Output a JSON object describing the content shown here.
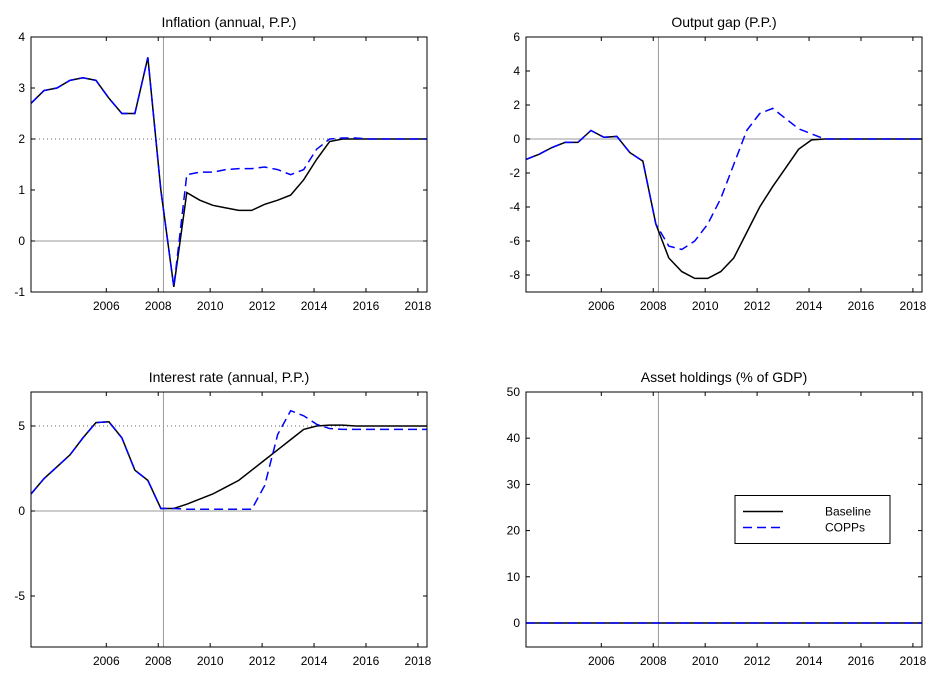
{
  "chart_data": [
    {
      "type": "line",
      "title": "Inflation (annual, P.P.)",
      "x": [
        2003.1,
        2003.6,
        2004.1,
        2004.6,
        2005.1,
        2005.6,
        2006.1,
        2006.6,
        2007.1,
        2007.6,
        2008.1,
        2008.6,
        2009.1,
        2009.6,
        2010.1,
        2010.6,
        2011.1,
        2011.6,
        2012.1,
        2012.6,
        2013.1,
        2013.6,
        2014.1,
        2014.6,
        2015.1,
        2015.6,
        2016.1,
        2016.6,
        2017.1,
        2017.6,
        2018.1,
        2018.35
      ],
      "series": [
        {
          "color": "#000000",
          "dash": "solid",
          "values": [
            2.7,
            2.95,
            3.0,
            3.15,
            3.2,
            3.15,
            2.8,
            2.5,
            2.5,
            3.6,
            1.0,
            -0.9,
            0.95,
            0.8,
            0.7,
            0.65,
            0.6,
            0.6,
            0.72,
            0.8,
            0.9,
            1.2,
            1.6,
            1.95,
            2.0,
            2.0,
            2.0,
            2.0,
            2.0,
            2.0,
            2.0,
            2.0
          ]
        },
        {
          "color": "#0000ff",
          "dash": "dashed",
          "values": [
            2.7,
            2.95,
            3.0,
            3.15,
            3.2,
            3.15,
            2.8,
            2.5,
            2.5,
            3.6,
            1.0,
            -0.9,
            1.3,
            1.35,
            1.35,
            1.4,
            1.42,
            1.42,
            1.45,
            1.4,
            1.3,
            1.4,
            1.8,
            2.0,
            2.02,
            2.02,
            2.0,
            2.0,
            2.0,
            2.0,
            2.0,
            2.0
          ]
        }
      ],
      "xlim": [
        2003.1,
        2018.35
      ],
      "xticks": [
        2006,
        2008,
        2010,
        2012,
        2014,
        2016,
        2018
      ],
      "ylim": [
        -1,
        4
      ],
      "yticks": [
        -1,
        0,
        1,
        2,
        3,
        4
      ],
      "vline": 2008.2,
      "reflines": [
        {
          "value": 0,
          "style": "solid"
        },
        {
          "value": 2,
          "style": "dotted"
        }
      ]
    },
    {
      "type": "line",
      "title": "Output gap (P.P.)",
      "x": [
        2003.1,
        2003.6,
        2004.1,
        2004.6,
        2005.1,
        2005.6,
        2006.1,
        2006.6,
        2007.1,
        2007.6,
        2008.1,
        2008.6,
        2009.1,
        2009.6,
        2010.1,
        2010.6,
        2011.1,
        2011.6,
        2012.1,
        2012.6,
        2013.1,
        2013.6,
        2014.1,
        2014.6,
        2015.1,
        2015.6,
        2016.1,
        2016.6,
        2017.1,
        2017.6,
        2018.1,
        2018.35
      ],
      "series": [
        {
          "color": "#000000",
          "dash": "solid",
          "values": [
            -1.2,
            -0.9,
            -0.5,
            -0.2,
            -0.2,
            0.5,
            0.1,
            0.15,
            -0.8,
            -1.3,
            -5.0,
            -7.0,
            -7.8,
            -8.2,
            -8.2,
            -7.8,
            -7.0,
            -5.5,
            -4.0,
            -2.8,
            -1.7,
            -0.6,
            -0.05,
            0,
            0,
            0,
            0,
            0,
            0,
            0,
            0,
            0
          ]
        },
        {
          "color": "#0000ff",
          "dash": "dashed",
          "values": [
            -1.2,
            -0.9,
            -0.5,
            -0.2,
            -0.2,
            0.5,
            0.1,
            0.15,
            -0.8,
            -1.3,
            -5.0,
            -6.3,
            -6.5,
            -6.0,
            -5.0,
            -3.5,
            -1.5,
            0.5,
            1.5,
            1.8,
            1.2,
            0.6,
            0.3,
            0,
            0,
            0,
            0,
            0,
            0,
            0,
            0,
            0
          ]
        }
      ],
      "xlim": [
        2003.1,
        2018.35
      ],
      "xticks": [
        2006,
        2008,
        2010,
        2012,
        2014,
        2016,
        2018
      ],
      "ylim": [
        -9,
        6
      ],
      "yticks": [
        -8,
        -6,
        -4,
        -2,
        0,
        2,
        4,
        6
      ],
      "vline": 2008.2,
      "reflines": [
        {
          "value": 0,
          "style": "solid"
        }
      ]
    },
    {
      "type": "line",
      "title": "Interest rate (annual, P.P.)",
      "x": [
        2003.1,
        2003.6,
        2004.1,
        2004.6,
        2005.1,
        2005.6,
        2006.1,
        2006.6,
        2007.1,
        2007.6,
        2008.1,
        2008.6,
        2009.1,
        2009.6,
        2010.1,
        2010.6,
        2011.1,
        2011.6,
        2012.1,
        2012.6,
        2013.1,
        2013.6,
        2014.1,
        2014.6,
        2015.1,
        2015.6,
        2016.1,
        2016.6,
        2017.1,
        2017.6,
        2018.1,
        2018.35
      ],
      "series": [
        {
          "color": "#000000",
          "dash": "solid",
          "values": [
            1.0,
            1.9,
            2.6,
            3.3,
            4.3,
            5.2,
            5.25,
            4.3,
            2.4,
            1.8,
            0.15,
            0.15,
            0.4,
            0.7,
            1.0,
            1.4,
            1.8,
            2.4,
            3.0,
            3.6,
            4.2,
            4.8,
            5.0,
            5.05,
            5.05,
            5.0,
            5.0,
            5.0,
            5.0,
            5.0,
            5.0,
            5.0
          ]
        },
        {
          "color": "#0000ff",
          "dash": "dashed",
          "values": [
            1.0,
            1.9,
            2.6,
            3.3,
            4.3,
            5.2,
            5.25,
            4.3,
            2.4,
            1.8,
            0.15,
            0.15,
            0.1,
            0.1,
            0.1,
            0.1,
            0.1,
            0.1,
            1.5,
            4.5,
            5.9,
            5.6,
            5.1,
            4.85,
            4.8,
            4.8,
            4.8,
            4.8,
            4.8,
            4.8,
            4.8,
            4.8
          ]
        }
      ],
      "xlim": [
        2003.1,
        2018.35
      ],
      "xticks": [
        2006,
        2008,
        2010,
        2012,
        2014,
        2016,
        2018
      ],
      "ylim": [
        -8,
        7
      ],
      "yticks": [
        -5,
        0,
        5
      ],
      "vline": 2008.2,
      "reflines": [
        {
          "value": 0,
          "style": "solid"
        },
        {
          "value": 5,
          "style": "dotted"
        }
      ]
    },
    {
      "type": "line",
      "title": "Asset holdings (% of GDP)",
      "x": [
        2003.1,
        2003.6,
        2004.1,
        2004.6,
        2005.1,
        2005.6,
        2006.1,
        2006.6,
        2007.1,
        2007.6,
        2008.1,
        2008.6,
        2009.1,
        2009.6,
        2010.1,
        2010.6,
        2011.1,
        2011.6,
        2012.1,
        2012.6,
        2013.1,
        2013.6,
        2014.1,
        2014.6,
        2015.1,
        2015.6,
        2016.1,
        2016.6,
        2017.1,
        2017.6,
        2018.1,
        2018.35
      ],
      "series": [
        {
          "name": "Baseline",
          "color": "#000000",
          "dash": "solid",
          "values": [
            0,
            0,
            0,
            0,
            0,
            0,
            0,
            0,
            0,
            0,
            0,
            0,
            0,
            0,
            0,
            0,
            0,
            0,
            0,
            0,
            0,
            0,
            0,
            0,
            0,
            0,
            0,
            0,
            0,
            0,
            0,
            0
          ]
        },
        {
          "name": "COPPs",
          "color": "#0000ff",
          "dash": "dashed",
          "values": [
            0,
            0,
            0,
            0,
            0,
            0,
            0,
            0,
            0,
            0,
            0,
            0,
            0,
            0,
            0,
            0,
            0,
            0,
            0,
            0,
            0,
            0,
            0,
            0,
            0,
            0,
            0,
            0,
            0,
            0,
            0,
            0
          ]
        }
      ],
      "xlim": [
        2003.1,
        2018.35
      ],
      "xticks": [
        2006,
        2008,
        2010,
        2012,
        2014,
        2016,
        2018
      ],
      "ylim": [
        -5.2,
        50
      ],
      "yticks": [
        0,
        10,
        20,
        30,
        40,
        50
      ],
      "vline": 2008.2,
      "legend": "center-right"
    }
  ]
}
